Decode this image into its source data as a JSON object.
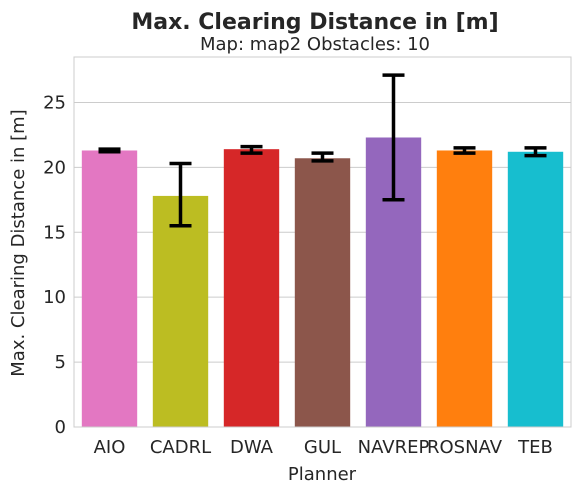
{
  "chart_data": {
    "type": "bar",
    "title": "Max. Clearing Distance in [m]",
    "subtitle": "Map: map2 Obstacles: 10",
    "xlabel": "Planner",
    "ylabel": "Max. Clearing Distance in [m]",
    "ylim": [
      0,
      28.5
    ],
    "yticks": [
      0,
      5,
      10,
      15,
      20,
      25
    ],
    "grid": true,
    "categories": [
      "AIO",
      "CADRL",
      "DWA",
      "GUL",
      "NAVREP",
      "ROSNAV",
      "TEB"
    ],
    "values": [
      21.3,
      17.8,
      21.4,
      20.7,
      22.3,
      21.3,
      21.2
    ],
    "error_low": [
      21.2,
      15.5,
      21.1,
      20.5,
      17.5,
      21.1,
      20.9
    ],
    "error_high": [
      21.4,
      20.3,
      21.6,
      21.1,
      27.1,
      21.5,
      21.5
    ],
    "colors": [
      "#e377c2",
      "#bcbd22",
      "#d62728",
      "#8c564b",
      "#9467bd",
      "#ff7f0e",
      "#17becf"
    ]
  }
}
